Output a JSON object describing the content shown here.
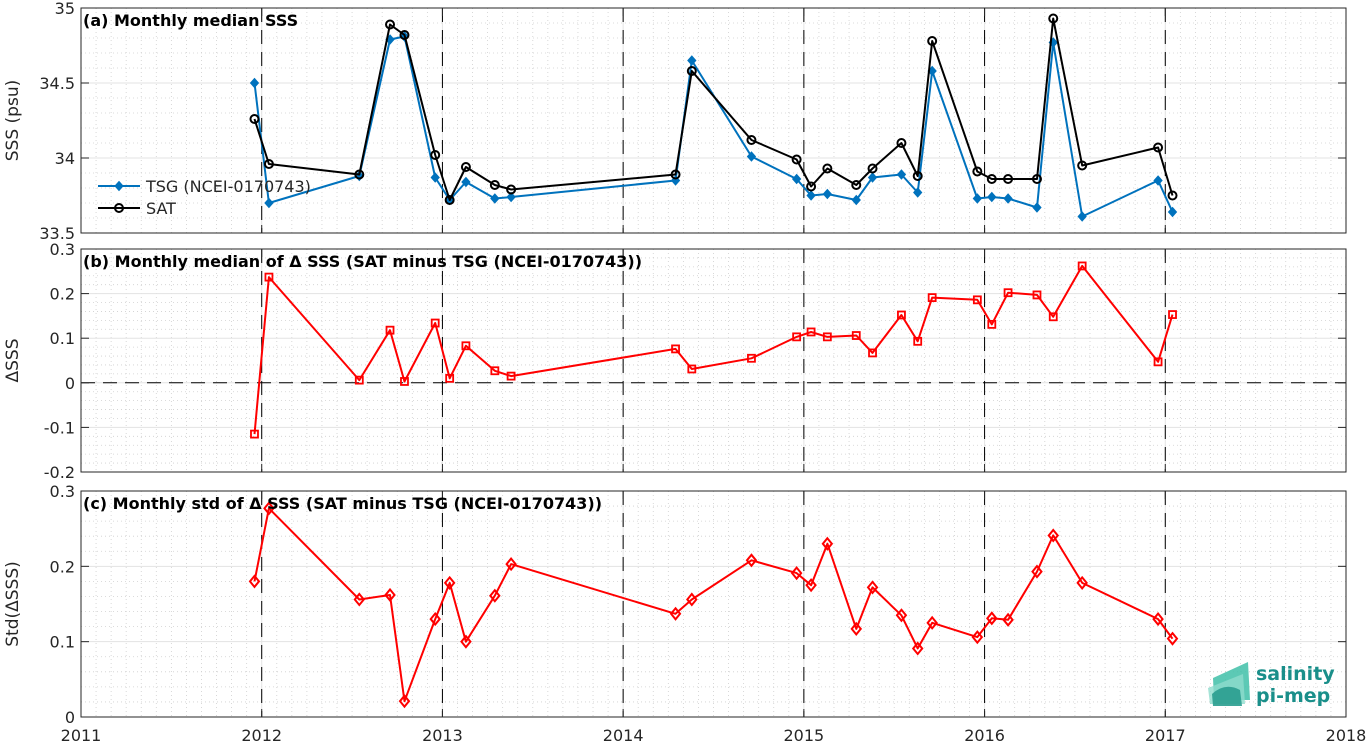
{
  "chart_data": [
    {
      "type": "line",
      "title": "(a) Monthly median SSS",
      "ylabel": "SSS (psu)",
      "ylim": [
        33.5,
        35
      ],
      "yticks": [
        "33.5",
        "34",
        "34.5",
        "35"
      ],
      "xlim": [
        2011,
        2018
      ],
      "grid": true,
      "legend_position": "left",
      "series": [
        {
          "name": "TSG (NCEI-0170743)",
          "color": "#0072bd",
          "marker": "diamond",
          "x": [
            2011.96,
            2012.04,
            2012.54,
            2012.71,
            2012.79,
            2012.96,
            2013.04,
            2013.13,
            2013.29,
            2013.38,
            2014.29,
            2014.38,
            2014.71,
            2014.96,
            2015.04,
            2015.13,
            2015.29,
            2015.38,
            2015.54,
            2015.63,
            2015.71,
            2015.96,
            2016.04,
            2016.13,
            2016.29,
            2016.38,
            2016.54,
            2016.96,
            2017.04
          ],
          "y": [
            34.5,
            33.7,
            33.88,
            34.79,
            34.81,
            33.87,
            33.72,
            33.84,
            33.73,
            33.74,
            33.85,
            34.65,
            34.01,
            33.86,
            33.75,
            33.76,
            33.72,
            33.87,
            33.89,
            33.77,
            34.58,
            33.73,
            33.74,
            33.73,
            33.67,
            34.77,
            33.61,
            33.85,
            33.64
          ]
        },
        {
          "name": "SAT",
          "color": "#000000",
          "marker": "circle",
          "x": [
            2011.96,
            2012.04,
            2012.54,
            2012.71,
            2012.79,
            2012.96,
            2013.04,
            2013.13,
            2013.29,
            2013.38,
            2014.29,
            2014.38,
            2014.71,
            2014.96,
            2015.04,
            2015.13,
            2015.29,
            2015.38,
            2015.54,
            2015.63,
            2015.71,
            2015.96,
            2016.04,
            2016.13,
            2016.29,
            2016.38,
            2016.54,
            2016.96,
            2017.04
          ],
          "y": [
            34.26,
            33.96,
            33.89,
            34.89,
            34.82,
            34.02,
            33.72,
            33.94,
            33.82,
            33.79,
            33.89,
            34.58,
            34.12,
            33.99,
            33.81,
            33.93,
            33.82,
            33.93,
            34.1,
            33.88,
            34.78,
            33.91,
            33.86,
            33.86,
            33.86,
            34.93,
            33.95,
            34.07,
            33.75
          ]
        }
      ]
    },
    {
      "type": "line",
      "title": "(b) Monthly median of Δ SSS (SAT minus TSG (NCEI-0170743))",
      "ylabel": "ΔSSS",
      "ylim": [
        -0.2,
        0.3
      ],
      "yticks": [
        "-0.2",
        "-0.1",
        "0",
        "0.1",
        "0.2",
        "0.3"
      ],
      "xlim": [
        2011,
        2018
      ],
      "grid": true,
      "reference_line": 0,
      "series": [
        {
          "color": "#ff0000",
          "marker": "square",
          "x": [
            2011.96,
            2012.04,
            2012.54,
            2012.71,
            2012.79,
            2012.96,
            2013.04,
            2013.13,
            2013.29,
            2013.38,
            2014.29,
            2014.38,
            2014.71,
            2014.96,
            2015.04,
            2015.13,
            2015.29,
            2015.38,
            2015.54,
            2015.63,
            2015.71,
            2015.96,
            2016.04,
            2016.13,
            2016.29,
            2016.38,
            2016.54,
            2016.96,
            2017.04
          ],
          "y": [
            -0.115,
            0.237,
            0.006,
            0.118,
            0.003,
            0.134,
            0.01,
            0.083,
            0.027,
            0.015,
            0.076,
            0.031,
            0.055,
            0.103,
            0.114,
            0.103,
            0.106,
            0.067,
            0.152,
            0.093,
            0.191,
            0.186,
            0.131,
            0.202,
            0.197,
            0.148,
            0.262,
            0.047,
            0.153
          ]
        }
      ]
    },
    {
      "type": "line",
      "title": "(c) Monthly std of Δ SSS (SAT minus TSG (NCEI-0170743))",
      "ylabel": "Std(ΔSSS)",
      "ylim": [
        0,
        0.3
      ],
      "yticks": [
        "0",
        "0.1",
        "0.2",
        "0.3"
      ],
      "xlim": [
        2011,
        2018
      ],
      "xticks": [
        "2011",
        "2012",
        "2013",
        "2014",
        "2015",
        "2016",
        "2017",
        "2018"
      ],
      "grid": true,
      "series": [
        {
          "color": "#ff0000",
          "marker": "diamond-open",
          "x": [
            2011.96,
            2012.04,
            2012.54,
            2012.71,
            2012.79,
            2012.96,
            2013.04,
            2013.13,
            2013.29,
            2013.38,
            2014.29,
            2014.38,
            2014.71,
            2014.96,
            2015.04,
            2015.13,
            2015.29,
            2015.38,
            2015.54,
            2015.63,
            2015.71,
            2015.96,
            2016.04,
            2016.13,
            2016.29,
            2016.38,
            2016.54,
            2016.96,
            2017.04
          ],
          "y": [
            0.18,
            0.277,
            0.156,
            0.162,
            0.021,
            0.13,
            0.178,
            0.1,
            0.161,
            0.203,
            0.137,
            0.156,
            0.208,
            0.191,
            0.175,
            0.23,
            0.117,
            0.172,
            0.135,
            0.091,
            0.125,
            0.106,
            0.131,
            0.129,
            0.193,
            0.241,
            0.178,
            0.13,
            0.104
          ]
        }
      ]
    }
  ],
  "logo": {
    "line1": "salinity",
    "line2": "pi-mep",
    "color": "#1a8f8a"
  }
}
